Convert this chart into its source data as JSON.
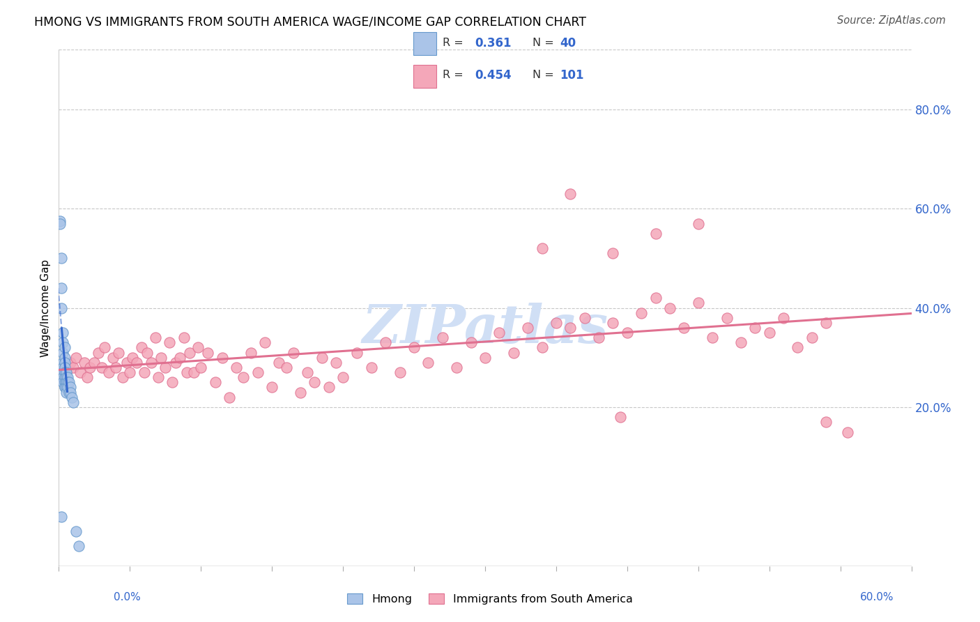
{
  "title": "HMONG VS IMMIGRANTS FROM SOUTH AMERICA WAGE/INCOME GAP CORRELATION CHART",
  "source": "Source: ZipAtlas.com",
  "ylabel": "Wage/Income Gap",
  "xlim": [
    0.0,
    0.6
  ],
  "ylim": [
    -0.12,
    0.92
  ],
  "y_ticks": [
    0.2,
    0.4,
    0.6,
    0.8
  ],
  "y_tick_labels": [
    "20.0%",
    "40.0%",
    "60.0%",
    "80.0%"
  ],
  "x_ticks": [
    0.0,
    0.05,
    0.1,
    0.15,
    0.2,
    0.25,
    0.3,
    0.35,
    0.4,
    0.45,
    0.5,
    0.55,
    0.6
  ],
  "legend_R_color": "#3366cc",
  "hmong_color": "#aac4e8",
  "hmong_edge": "#6699cc",
  "south_america_color": "#f4a7b9",
  "south_america_edge": "#e07090",
  "trend_blue": "#3366cc",
  "trend_pink": "#e07090",
  "watermark": "ZIPatlas",
  "watermark_color": "#d0dff5",
  "hmong_x": [
    0.001,
    0.001,
    0.002,
    0.002,
    0.002,
    0.002,
    0.003,
    0.003,
    0.003,
    0.003,
    0.003,
    0.003,
    0.003,
    0.003,
    0.004,
    0.004,
    0.004,
    0.004,
    0.004,
    0.004,
    0.004,
    0.004,
    0.004,
    0.005,
    0.005,
    0.005,
    0.005,
    0.005,
    0.005,
    0.006,
    0.006,
    0.006,
    0.007,
    0.007,
    0.008,
    0.008,
    0.009,
    0.01,
    0.012,
    0.014
  ],
  "hmong_y": [
    0.575,
    0.57,
    0.5,
    0.44,
    0.4,
    -0.02,
    0.35,
    0.33,
    0.31,
    0.29,
    0.28,
    0.27,
    0.26,
    0.25,
    0.32,
    0.3,
    0.29,
    0.28,
    0.27,
    0.26,
    0.25,
    0.24,
    0.24,
    0.27,
    0.26,
    0.25,
    0.25,
    0.24,
    0.23,
    0.26,
    0.25,
    0.24,
    0.25,
    0.23,
    0.24,
    0.23,
    0.22,
    0.21,
    -0.05,
    -0.08
  ],
  "sa_x": [
    0.005,
    0.008,
    0.01,
    0.012,
    0.015,
    0.018,
    0.02,
    0.022,
    0.025,
    0.028,
    0.03,
    0.032,
    0.035,
    0.038,
    0.04,
    0.042,
    0.045,
    0.048,
    0.05,
    0.052,
    0.055,
    0.058,
    0.06,
    0.062,
    0.065,
    0.068,
    0.07,
    0.072,
    0.075,
    0.078,
    0.08,
    0.082,
    0.085,
    0.088,
    0.09,
    0.092,
    0.095,
    0.098,
    0.1,
    0.105,
    0.11,
    0.115,
    0.12,
    0.125,
    0.13,
    0.135,
    0.14,
    0.145,
    0.15,
    0.155,
    0.16,
    0.165,
    0.17,
    0.175,
    0.18,
    0.185,
    0.19,
    0.195,
    0.2,
    0.21,
    0.22,
    0.23,
    0.24,
    0.25,
    0.26,
    0.27,
    0.28,
    0.29,
    0.3,
    0.31,
    0.32,
    0.33,
    0.34,
    0.35,
    0.36,
    0.37,
    0.38,
    0.39,
    0.4,
    0.41,
    0.42,
    0.43,
    0.44,
    0.45,
    0.46,
    0.47,
    0.48,
    0.49,
    0.5,
    0.51,
    0.52,
    0.53,
    0.54,
    0.39,
    0.36,
    0.34,
    0.42,
    0.45,
    0.395,
    0.54,
    0.555
  ],
  "sa_y": [
    0.27,
    0.29,
    0.28,
    0.3,
    0.27,
    0.29,
    0.26,
    0.28,
    0.29,
    0.31,
    0.28,
    0.32,
    0.27,
    0.3,
    0.28,
    0.31,
    0.26,
    0.29,
    0.27,
    0.3,
    0.29,
    0.32,
    0.27,
    0.31,
    0.29,
    0.34,
    0.26,
    0.3,
    0.28,
    0.33,
    0.25,
    0.29,
    0.3,
    0.34,
    0.27,
    0.31,
    0.27,
    0.32,
    0.28,
    0.31,
    0.25,
    0.3,
    0.22,
    0.28,
    0.26,
    0.31,
    0.27,
    0.33,
    0.24,
    0.29,
    0.28,
    0.31,
    0.23,
    0.27,
    0.25,
    0.3,
    0.24,
    0.29,
    0.26,
    0.31,
    0.28,
    0.33,
    0.27,
    0.32,
    0.29,
    0.34,
    0.28,
    0.33,
    0.3,
    0.35,
    0.31,
    0.36,
    0.32,
    0.37,
    0.36,
    0.38,
    0.34,
    0.37,
    0.35,
    0.39,
    0.42,
    0.4,
    0.36,
    0.41,
    0.34,
    0.38,
    0.33,
    0.36,
    0.35,
    0.38,
    0.32,
    0.34,
    0.37,
    0.51,
    0.63,
    0.52,
    0.55,
    0.57,
    0.18,
    0.17,
    0.15
  ]
}
